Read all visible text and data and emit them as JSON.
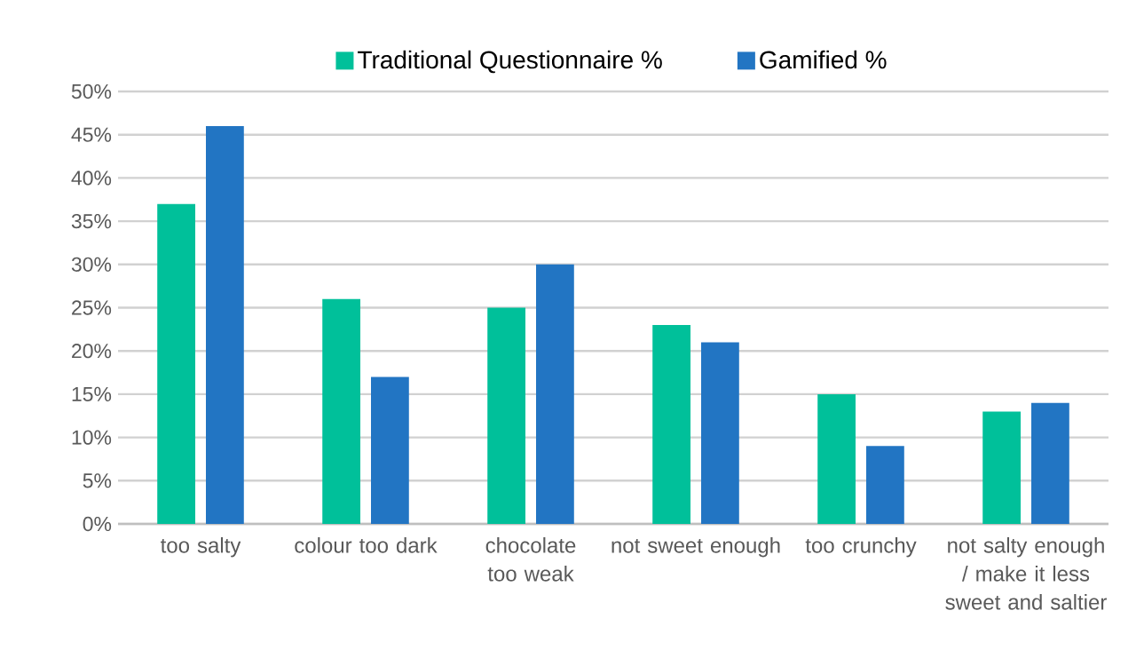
{
  "chart_data": {
    "type": "bar",
    "categories": [
      "too salty",
      "colour too dark",
      "chocolate too weak",
      "not sweet enough",
      "too crunchy",
      "not salty enough / make it less sweet and saltier"
    ],
    "series": [
      {
        "name": "Traditional Questionnaire %",
        "color": "#00c09a",
        "values": [
          37,
          26,
          25,
          23,
          15,
          13
        ]
      },
      {
        "name": "Gamified  %",
        "color": "#2275c3",
        "values": [
          46,
          17,
          30,
          21,
          9,
          14
        ]
      }
    ],
    "ylim": [
      0,
      50
    ],
    "yticks": [
      {
        "value": 0,
        "label": "0%"
      },
      {
        "value": 5,
        "label": "5%"
      },
      {
        "value": 10,
        "label": "10%"
      },
      {
        "value": 15,
        "label": "15%"
      },
      {
        "value": 20,
        "label": "20%"
      },
      {
        "value": 25,
        "label": "25%"
      },
      {
        "value": 30,
        "label": "30%"
      },
      {
        "value": 35,
        "label": "35%"
      },
      {
        "value": 40,
        "label": "40%"
      },
      {
        "value": 45,
        "label": "45%"
      },
      {
        "value": 50,
        "label": "50%"
      }
    ],
    "grid": "y",
    "legend": "top"
  }
}
